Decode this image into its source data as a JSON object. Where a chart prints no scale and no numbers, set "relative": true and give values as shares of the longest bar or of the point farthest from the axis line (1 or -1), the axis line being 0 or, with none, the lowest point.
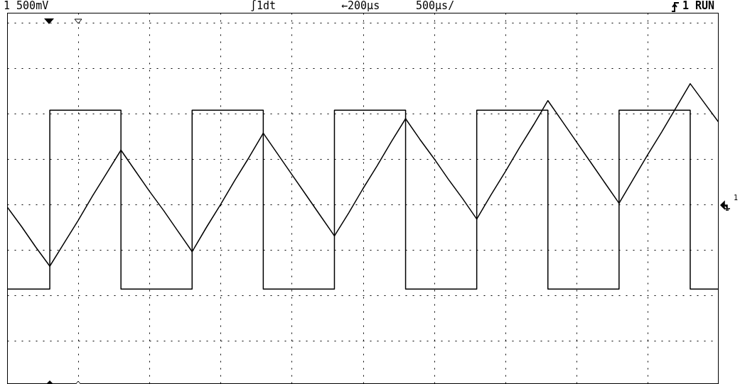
{
  "chart_data": {
    "type": "line",
    "relative": true,
    "grid": true,
    "annotations": [
      "1 500mV",
      "∫1dt",
      "←200µs",
      "500µs/",
      "1 RUN",
      "1"
    ],
    "categories": [
      null,
      null,
      null,
      null,
      null,
      null,
      null,
      null,
      null,
      null,
      null,
      null,
      null,
      null,
      null,
      null,
      null,
      null,
      null,
      null,
      null,
      null,
      null,
      null,
      null,
      null,
      null,
      null,
      null,
      null,
      null,
      null,
      null,
      null,
      null,
      null,
      null,
      null,
      null,
      null,
      null,
      null,
      null,
      null,
      null,
      null,
      null,
      null,
      null,
      null,
      null
    ],
    "series": [
      {
        "type": "step",
        "color": "#000000",
        "values": [
          -0.7,
          -0.7,
          -0.7,
          0.78,
          0.78,
          0.78,
          0.78,
          0.78,
          -0.7,
          -0.7,
          -0.7,
          -0.7,
          -0.7,
          0.78,
          0.78,
          0.78,
          0.78,
          0.78,
          -0.7,
          -0.7,
          -0.7,
          -0.7,
          -0.7,
          0.78,
          0.78,
          0.78,
          0.78,
          0.78,
          -0.7,
          -0.7,
          -0.7,
          -0.7,
          -0.7,
          0.78,
          0.78,
          0.78,
          0.78,
          0.78,
          -0.7,
          -0.7,
          -0.7,
          -0.7,
          -0.7,
          0.78,
          0.78,
          0.78,
          0.78,
          0.78,
          -0.7,
          -0.7,
          -0.7
        ]
      },
      {
        "type": "line",
        "color": "#000000",
        "values": [
          -0.02,
          -0.18,
          -0.35,
          -0.51,
          -0.32,
          -0.13,
          0.07,
          0.26,
          0.45,
          0.28,
          0.11,
          -0.05,
          -0.22,
          -0.39,
          -0.19,
          0.0,
          0.2,
          0.39,
          0.59,
          0.42,
          0.25,
          0.08,
          -0.09,
          -0.26,
          -0.07,
          0.13,
          0.32,
          0.52,
          0.71,
          0.54,
          0.38,
          0.21,
          0.05,
          -0.12,
          0.08,
          0.27,
          0.47,
          0.66,
          0.86,
          0.69,
          0.52,
          0.35,
          0.18,
          0.01,
          0.21,
          0.41,
          0.6,
          0.8,
          1,
          0.84,
          0.68
        ]
      }
    ]
  }
}
